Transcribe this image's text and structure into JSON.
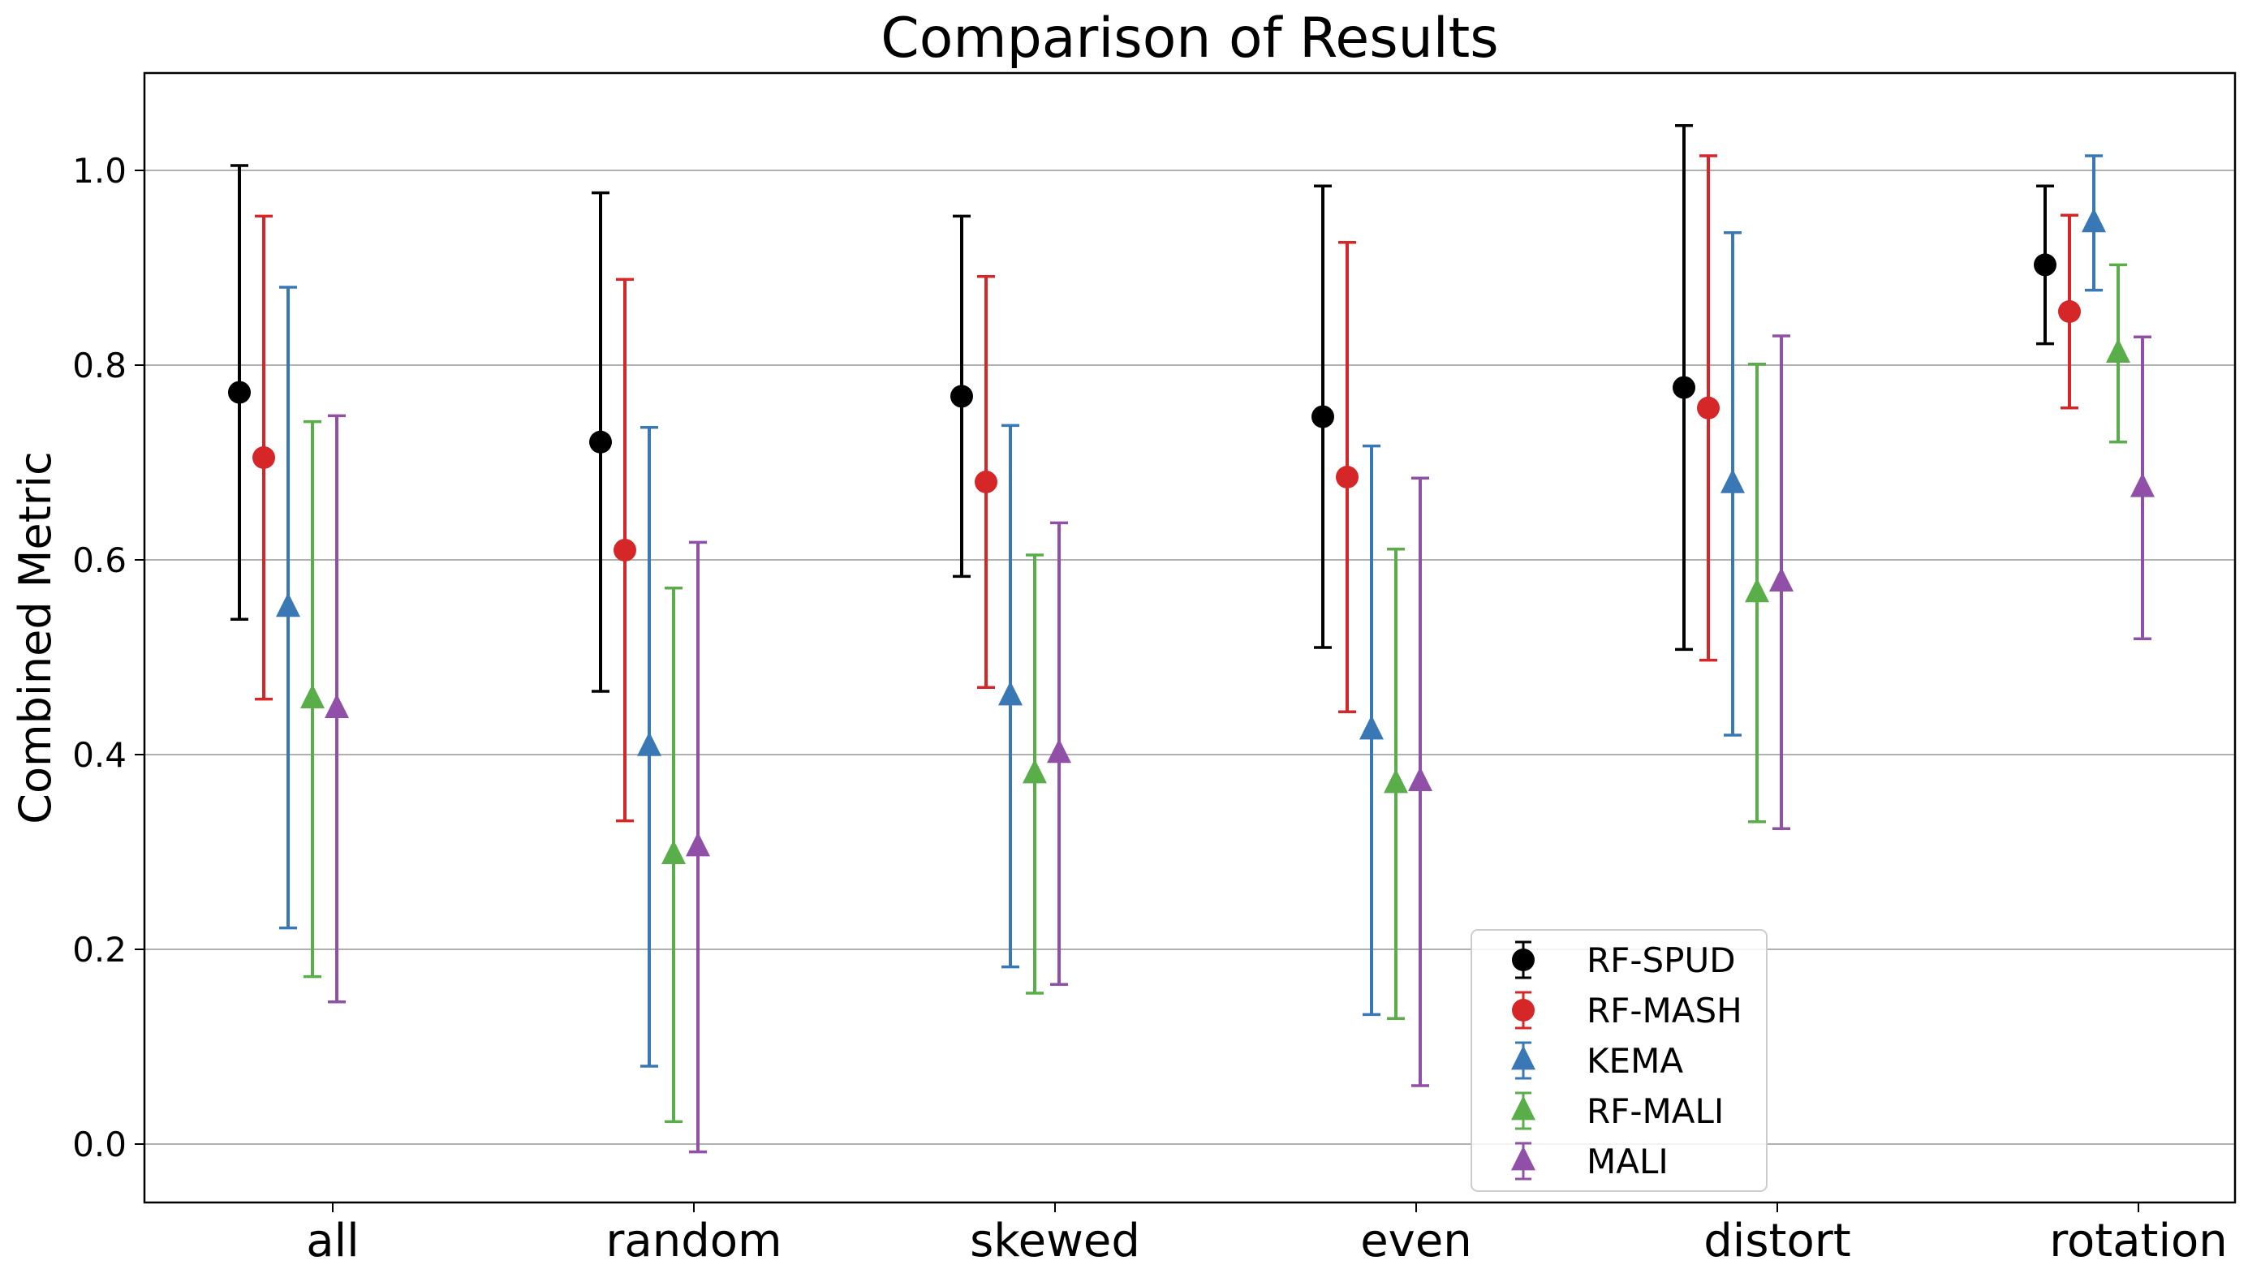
{
  "chart_data": {
    "type": "scatter",
    "title": "Comparison of Results",
    "xlabel": "",
    "ylabel": "Combined Metric",
    "categories": [
      "all",
      "random",
      "skewed",
      "even",
      "distort",
      "rotation"
    ],
    "ylim": [
      -0.06,
      1.1
    ],
    "yticks": [
      0.0,
      0.2,
      0.4,
      0.6,
      0.8,
      1.0
    ],
    "ytick_labels": [
      "0.0",
      "0.2",
      "0.4",
      "0.6",
      "0.8",
      "1.0"
    ],
    "grid": "horizontal",
    "legend_position": "bottom-center",
    "error_bars": true,
    "series": [
      {
        "name": "RF-SPUD",
        "color": "#000000",
        "marker": "circle",
        "values": [
          0.772,
          0.721,
          0.768,
          0.747,
          0.777,
          0.903
        ],
        "errors": [
          0.233,
          0.256,
          0.185,
          0.237,
          0.269,
          0.081
        ]
      },
      {
        "name": "RF-MASH",
        "color": "#d62728",
        "marker": "circle",
        "values": [
          0.705,
          0.61,
          0.68,
          0.685,
          0.756,
          0.855
        ],
        "errors": [
          0.248,
          0.278,
          0.211,
          0.241,
          0.259,
          0.099
        ]
      },
      {
        "name": "KEMA",
        "color": "#3a78b5",
        "marker": "triangle",
        "values": [
          0.551,
          0.408,
          0.46,
          0.425,
          0.678,
          0.946
        ],
        "errors": [
          0.329,
          0.328,
          0.278,
          0.292,
          0.258,
          0.069
        ]
      },
      {
        "name": "RF-MALI",
        "color": "#5aae4a",
        "marker": "triangle",
        "values": [
          0.457,
          0.297,
          0.38,
          0.37,
          0.566,
          0.812
        ],
        "errors": [
          0.285,
          0.274,
          0.225,
          0.241,
          0.235,
          0.091
        ]
      },
      {
        "name": "MALI",
        "color": "#9050a8",
        "marker": "triangle",
        "values": [
          0.447,
          0.305,
          0.401,
          0.372,
          0.577,
          0.674
        ],
        "errors": [
          0.301,
          0.313,
          0.237,
          0.312,
          0.253,
          0.155
        ]
      }
    ]
  }
}
